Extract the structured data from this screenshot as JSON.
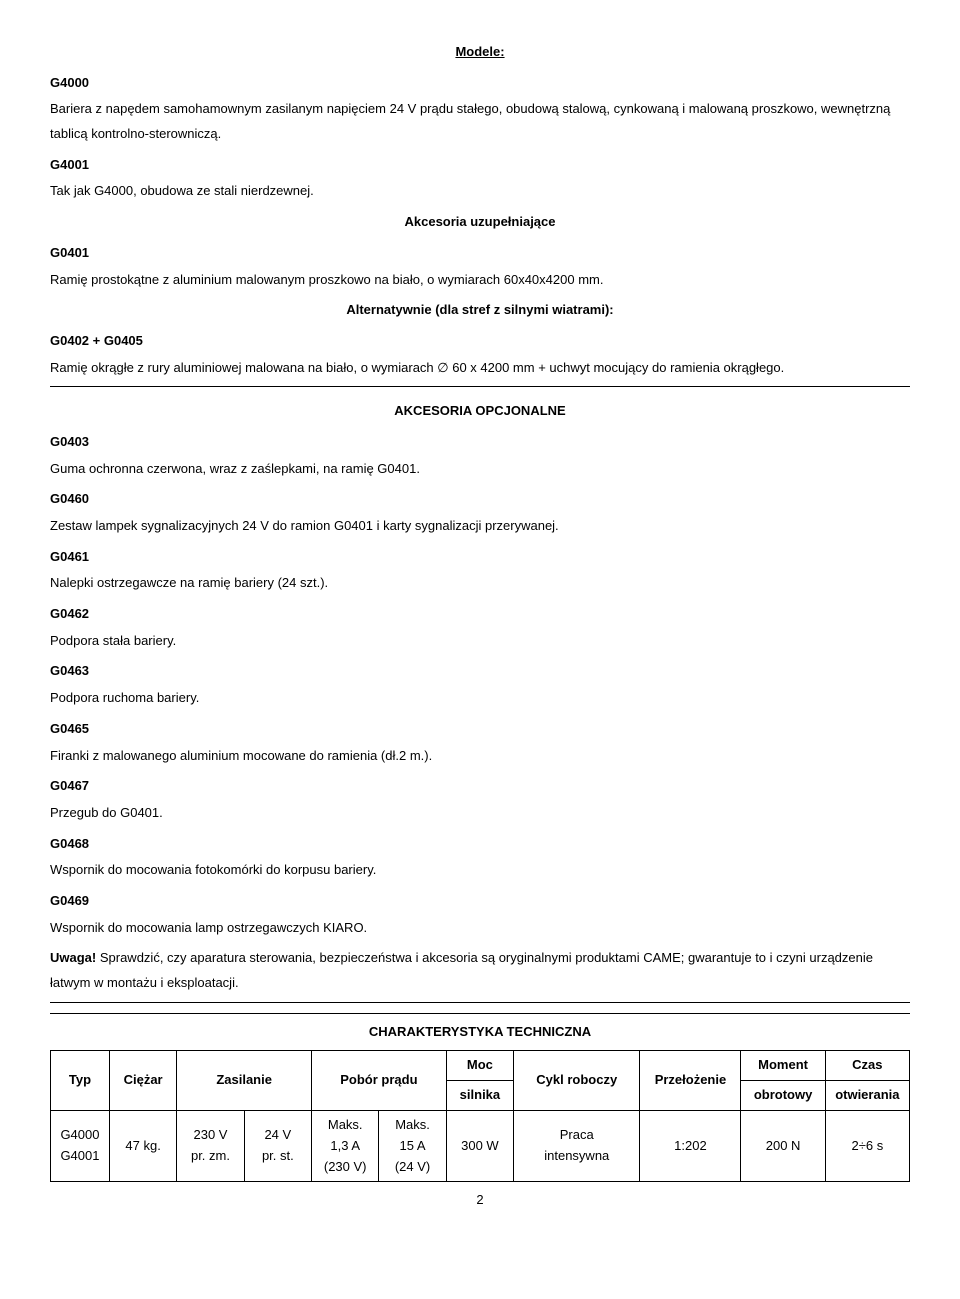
{
  "header_title": "Modele:",
  "models": [
    {
      "code": "G4000",
      "desc": "Bariera z napędem samohamownym zasilanym napięciem 24 V prądu stałego, obudową stalową, cynkowaną i malowaną proszkowo, wewnętrzną tablicą kontrolno-sterowniczą."
    },
    {
      "code": "G4001",
      "desc": "Tak jak G4000, obudowa ze stali nierdzewnej."
    }
  ],
  "heading_accessories": "Akcesoria uzupełniające",
  "acc1": {
    "code": "G0401",
    "desc": "Ramię prostokątne z aluminium malowanym proszkowo na biało, o wymiarach 60x40x4200 mm."
  },
  "alt_note": "Alternatywnie (dla stref z silnymi wiatrami):",
  "acc2": {
    "code": "G0402 + G0405",
    "desc": "Ramię okrągłe z rury aluminiowej malowana na biało, o wymiarach ∅ 60 x 4200 mm + uchwyt mocujący do ramienia okrągłego."
  },
  "heading_optional": "AKCESORIA OPCJONALNE",
  "optional": [
    {
      "code": "G0403",
      "desc": "Guma ochronna czerwona, wraz z zaślepkami, na ramię G0401."
    },
    {
      "code": "G0460",
      "desc": "Zestaw lampek sygnalizacyjnych 24 V do ramion G0401 i karty sygnalizacji przerywanej."
    },
    {
      "code": "G0461",
      "desc": "Nalepki ostrzegawcze na ramię bariery (24 szt.)."
    },
    {
      "code": "G0462",
      "desc": "Podpora stała bariery."
    },
    {
      "code": "G0463",
      "desc": "Podpora ruchoma bariery."
    },
    {
      "code": "G0465",
      "desc": "Firanki z malowanego aluminium mocowane do ramienia (dł.2 m.)."
    },
    {
      "code": "G0467",
      "desc": "Przegub do G0401."
    },
    {
      "code": "G0468",
      "desc": "Wspornik do mocowania fotokomórki do korpusu bariery."
    },
    {
      "code": "G0469",
      "desc": "Wspornik do mocowania lamp ostrzegawczych KIARO."
    }
  ],
  "warning_label": "Uwaga!",
  "warning_text": " Sprawdzić, czy aparatura sterowania, bezpieczeństwa i akcesoria są oryginalnymi produktami CAME; gwarantuje to i czyni urządzenie łatwym w montażu i eksploatacji.",
  "table_title": "CHARAKTERYSTYKA TECHNICZNA",
  "table": {
    "columns": [
      "Typ",
      "Ciężar",
      "Zasilanie",
      "Pobór prądu",
      "Moc silnika",
      "Cykl roboczy",
      "Przełożenie",
      "Moment obrotowy",
      "Czas otwierania"
    ],
    "col_widths": [
      "7%",
      "8%",
      "16%",
      "16%",
      "8%",
      "15%",
      "12%",
      "10%",
      "10%"
    ],
    "h1_lines": {
      "c0": "Typ",
      "c1": "Ciężar",
      "c2": "Zasilanie",
      "c3": "Pobór prądu",
      "c4a": "Moc",
      "c4b": "silnika",
      "c5": "Cykl roboczy",
      "c6": "Przełożenie",
      "c7a": "Moment",
      "c7b": "obrotowy",
      "c8a": "Czas",
      "c8b": "otwierania"
    },
    "data": {
      "types": "G4000\nG4001",
      "weight": "47 kg.",
      "power_a": "230 V\npr. zm.",
      "power_b": "24 V\npr. st.",
      "current_a": "Maks.\n1,3 A\n(230 V)",
      "current_b": "Maks.\n15 A\n(24 V)",
      "motor_power": "300 W",
      "duty_cycle": "Praca\nintensywna",
      "ratio": "1:202",
      "torque": "200 N",
      "open_time": "2÷6 s"
    }
  },
  "page_number": "2"
}
